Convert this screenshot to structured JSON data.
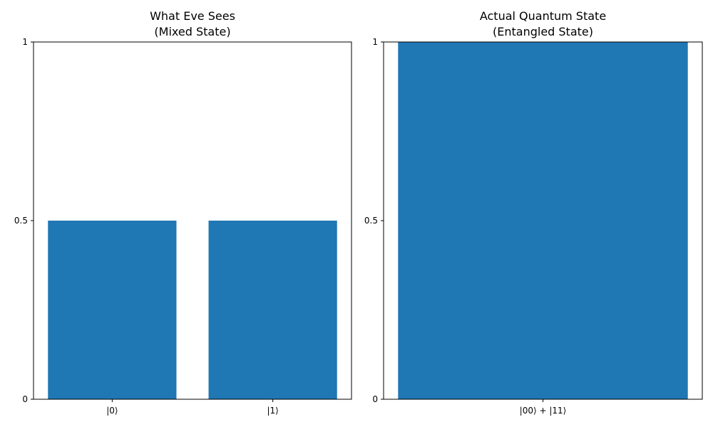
{
  "chart_data": [
    {
      "type": "bar",
      "title": "What Eve Sees\n(Mixed State)",
      "categories": [
        "|0⟩",
        "|1⟩"
      ],
      "values": [
        0.5,
        0.5
      ],
      "xlabel": "",
      "ylabel": "",
      "ylim": [
        0,
        1
      ],
      "yticks": [
        0,
        0.5,
        1
      ],
      "ytick_labels": [
        "0",
        "0.5",
        "1"
      ],
      "bar_color": "#1f77b4",
      "grid": false
    },
    {
      "type": "bar",
      "title": "Actual Quantum State\n(Entangled State)",
      "categories": [
        "|00⟩ + |11⟩"
      ],
      "values": [
        1.0
      ],
      "xlabel": "",
      "ylabel": "",
      "ylim": [
        0,
        1
      ],
      "yticks": [
        0,
        0.5,
        1
      ],
      "ytick_labels": [
        "0",
        "0.5",
        "1"
      ],
      "bar_color": "#1f77b4",
      "grid": false
    }
  ]
}
